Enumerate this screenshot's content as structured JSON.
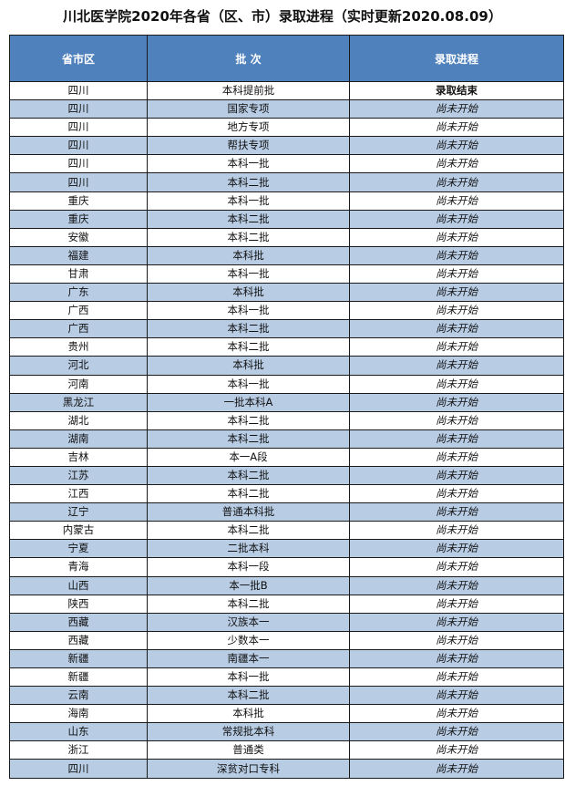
{
  "title": "川北医学院2020年各省（区、市）录取进程（实时更新2020.08.09）",
  "colors": {
    "header_bg": "#4f81bd",
    "alt_row_bg": "#b8cce4"
  },
  "table": {
    "headers": [
      "省市区",
      "批 次",
      "录取进程"
    ],
    "rows": [
      [
        "四川",
        "本科提前批",
        "录取结束"
      ],
      [
        "四川",
        "国家专项",
        "尚未开始"
      ],
      [
        "四川",
        "地方专项",
        "尚未开始"
      ],
      [
        "四川",
        "帮扶专项",
        "尚未开始"
      ],
      [
        "四川",
        "本科一批",
        "尚未开始"
      ],
      [
        "四川",
        "本科二批",
        "尚未开始"
      ],
      [
        "重庆",
        "本科一批",
        "尚未开始"
      ],
      [
        "重庆",
        "本科二批",
        "尚未开始"
      ],
      [
        "安徽",
        "本科二批",
        "尚未开始"
      ],
      [
        "福建",
        "本科批",
        "尚未开始"
      ],
      [
        "甘肃",
        "本科一批",
        "尚未开始"
      ],
      [
        "广东",
        "本科批",
        "尚未开始"
      ],
      [
        "广西",
        "本科一批",
        "尚未开始"
      ],
      [
        "广西",
        "本科二批",
        "尚未开始"
      ],
      [
        "贵州",
        "本科二批",
        "尚未开始"
      ],
      [
        "河北",
        "本科批",
        "尚未开始"
      ],
      [
        "河南",
        "本科一批",
        "尚未开始"
      ],
      [
        "黑龙江",
        "一批本科A",
        "尚未开始"
      ],
      [
        "湖北",
        "本科二批",
        "尚未开始"
      ],
      [
        "湖南",
        "本科二批",
        "尚未开始"
      ],
      [
        "吉林",
        "本一A段",
        "尚未开始"
      ],
      [
        "江苏",
        "本科二批",
        "尚未开始"
      ],
      [
        "江西",
        "本科二批",
        "尚未开始"
      ],
      [
        "辽宁",
        "普通本科批",
        "尚未开始"
      ],
      [
        "内蒙古",
        "本科二批",
        "尚未开始"
      ],
      [
        "宁夏",
        "二批本科",
        "尚未开始"
      ],
      [
        "青海",
        "本科一段",
        "尚未开始"
      ],
      [
        "山西",
        "本一批B",
        "尚未开始"
      ],
      [
        "陕西",
        "本科二批",
        "尚未开始"
      ],
      [
        "西藏",
        "汉族本一",
        "尚未开始"
      ],
      [
        "西藏",
        "少数本一",
        "尚未开始"
      ],
      [
        "新疆",
        "南疆本一",
        "尚未开始"
      ],
      [
        "新疆",
        "本科一批",
        "尚未开始"
      ],
      [
        "云南",
        "本科二批",
        "尚未开始"
      ],
      [
        "海南",
        "本科批",
        "尚未开始"
      ],
      [
        "山东",
        "常规批本科",
        "尚未开始"
      ],
      [
        "浙江",
        "普通类",
        "尚未开始"
      ],
      [
        "四川",
        "深贫对口专科",
        "尚未开始"
      ]
    ]
  }
}
